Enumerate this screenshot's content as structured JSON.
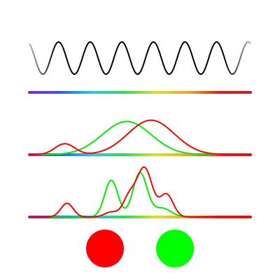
{
  "diagram": {
    "wave": {
      "cycles": 7,
      "color": "#000000",
      "fade_color": "#b0b0b0"
    },
    "spectrum_colors": [
      "#7a1fc8",
      "#2a4df0",
      "#18c8e8",
      "#22d84a",
      "#d8e018",
      "#f0a020",
      "#e01010",
      "#d01010"
    ],
    "curve_colors": {
      "red": "#ff0000",
      "green": "#00ee00"
    },
    "smooth_response": {
      "red_peaks": [
        {
          "center": 0.16,
          "height": 0.27,
          "width": 0.045
        },
        {
          "center": 0.55,
          "height": 0.85,
          "width": 0.105
        }
      ],
      "green_peaks": [
        {
          "center": 0.44,
          "height": 0.82,
          "width": 0.11
        }
      ]
    },
    "detailed_response": {
      "red_peaks": [
        {
          "center": 0.17,
          "height": 0.28,
          "width": 0.028
        },
        {
          "center": 0.37,
          "height": 0.1,
          "width": 0.03
        },
        {
          "center": 0.45,
          "height": 0.38,
          "width": 0.028
        },
        {
          "center": 0.52,
          "height": 1.0,
          "width": 0.035
        },
        {
          "center": 0.62,
          "height": 0.46,
          "width": 0.03
        }
      ],
      "green_peaks": [
        {
          "center": 0.37,
          "height": 0.75,
          "width": 0.03
        },
        {
          "center": 0.5,
          "height": 0.9,
          "width": 0.032
        },
        {
          "center": 0.6,
          "height": 0.18,
          "width": 0.04
        }
      ]
    },
    "indicators": [
      {
        "name": "red-indicator",
        "color": "#ff0000"
      },
      {
        "name": "green-indicator",
        "color": "#00ff00"
      }
    ]
  }
}
